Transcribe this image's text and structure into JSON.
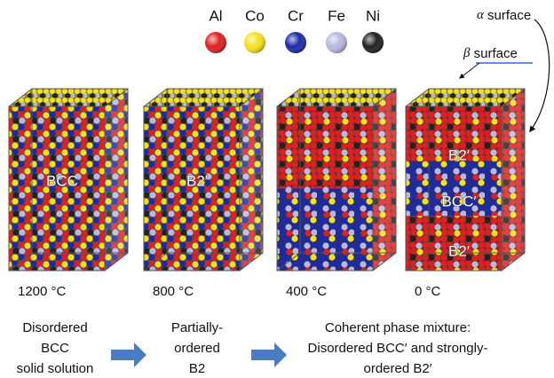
{
  "legend": [
    {
      "label": "Al",
      "color": "#e02020"
    },
    {
      "label": "Co",
      "color": "#f2e21a"
    },
    {
      "label": "Cr",
      "color": "#1c2aa8"
    },
    {
      "label": "Fe",
      "color": "#b8b8e0"
    },
    {
      "label": "Ni",
      "color": "#222222"
    }
  ],
  "surfaces": [
    {
      "symbol": "α",
      "label": "surface"
    },
    {
      "symbol": "β",
      "label": "surface"
    }
  ],
  "panels": [
    {
      "temperature": "1200 °C",
      "phases": [
        "BCC"
      ]
    },
    {
      "temperature": "800 °C",
      "phases": [
        "B2′"
      ]
    },
    {
      "temperature": "400 °C",
      "phases": []
    },
    {
      "temperature": "0 °C",
      "phases": [
        "B2′",
        "BCC′",
        "B2′"
      ]
    }
  ],
  "stages": [
    {
      "lines": [
        "Disordered",
        "BCC",
        "solid solution"
      ]
    },
    {
      "lines": [
        "Partially-",
        "ordered",
        "B2"
      ]
    },
    {
      "lines": [
        "Coherent phase mixture:",
        "Disordered BCC′ and strongly-",
        "ordered B2′"
      ]
    }
  ]
}
